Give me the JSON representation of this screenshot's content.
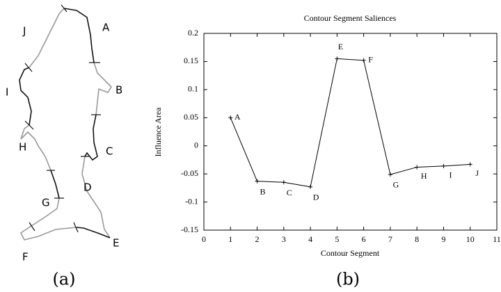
{
  "panel_a": {
    "labels": [
      "A",
      "B",
      "C",
      "D",
      "E",
      "F",
      "G",
      "H",
      "I",
      "J"
    ],
    "caption": "(a)"
  },
  "panel_b": {
    "caption": "(b)"
  },
  "chart_data": {
    "type": "line",
    "title": "Contour Segment Saliences",
    "x_label": "Contour Segment",
    "y_label": "Influence Area",
    "x": [
      1,
      2,
      3,
      4,
      5,
      6,
      7,
      8,
      9,
      10
    ],
    "values": [
      0.05,
      -0.063,
      -0.065,
      -0.073,
      0.155,
      0.152,
      -0.051,
      -0.038,
      -0.036,
      -0.033
    ],
    "point_labels": [
      "A",
      "B",
      "C",
      "D",
      "E",
      "F",
      "G",
      "H",
      "I",
      "J"
    ],
    "color": "#000000",
    "xlim": [
      0,
      11
    ],
    "xticks": [
      0,
      1,
      2,
      3,
      4,
      5,
      6,
      7,
      8,
      9,
      10,
      11
    ],
    "ylim": [
      -0.15,
      0.2
    ],
    "yticks": [
      -0.15,
      -0.1,
      -0.05,
      0,
      0.05,
      0.1,
      0.15,
      0.2
    ],
    "grid": false
  }
}
